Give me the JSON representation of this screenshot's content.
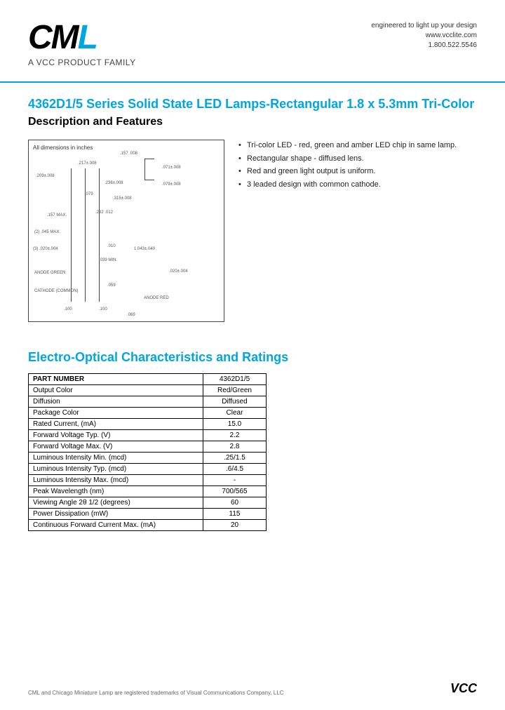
{
  "header": {
    "logo_letters": {
      "c": "C",
      "m": "M",
      "l": "L"
    },
    "logo_sub": "A VCC PRODUCT FAMILY",
    "tagline": "engineered to light up your design",
    "url": "www.vcclite.com",
    "phone": "1.800.522.5546"
  },
  "title": "4362D1/5 Series Solid State LED Lamps-Rectangular 1.8 x 5.3mm Tri-Color",
  "subtitle": "Description and Features",
  "diagram": {
    "caption": "All dimensions in inches",
    "dims": [
      ".217±.008",
      ".071±.008",
      ".209±.008",
      ".236±.008",
      ".079±.008",
      ".079",
      ".315±.008",
      ".157 MAX.",
      ".232 .012",
      "(2) .045 MAX.",
      ".010",
      "(3) .020±.004",
      "1.043±.040",
      ".039 MIN.",
      ".020±.004",
      ".059",
      ".069",
      ".100",
      ".100",
      "ANODE GREEN",
      "CATHODE (COMMON)",
      "ANODE RED",
      ".157 .008"
    ]
  },
  "features": [
    "Tri-color LED - red, green and amber LED chip in same lamp.",
    "Rectangular shape - diffused lens.",
    "Red and green light output is uniform.",
    "3 leaded design with common cathode."
  ],
  "section2_title": "Electro-Optical Characteristics and Ratings",
  "spec_table": {
    "rows": [
      [
        "PART NUMBER",
        "4362D1/5"
      ],
      [
        "Output Color",
        "Red/Green"
      ],
      [
        "Diffusion",
        "Diffused"
      ],
      [
        "Package Color",
        "Clear"
      ],
      [
        "Rated Current, (mA)",
        "15.0"
      ],
      [
        "Forward Voltage Typ. (V)",
        "2.2"
      ],
      [
        "Forward Voltage Max. (V)",
        "2.8"
      ],
      [
        "Luminous Intensity Min. (mcd)",
        ".25/1.5"
      ],
      [
        "Luminous Intensity Typ. (mcd)",
        ".6/4.5"
      ],
      [
        "Luminous Intensity Max. (mcd)",
        "-"
      ],
      [
        "Peak Wavelength (nm)",
        "700/565"
      ],
      [
        "Viewing Angle 2θ 1/2 (degrees)",
        "60"
      ],
      [
        "Power Dissipation (mW)",
        "115"
      ],
      [
        "Continuous Forward Current Max. (mA)",
        "20"
      ]
    ]
  },
  "footer": {
    "text": "CML and Chicago Miniature Lamp are registered trademarks of Visual Communications Company, LLC",
    "vcc": "VCC"
  },
  "colors": {
    "accent": "#00a6e0",
    "text": "#222222",
    "border": "#000000"
  }
}
